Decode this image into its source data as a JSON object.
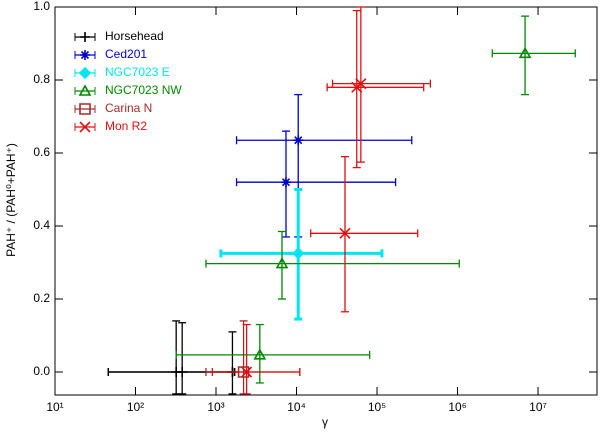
{
  "chart_data": {
    "type": "scatter",
    "xlabel": "γ",
    "ylabel": "PAH⁺ / (PAH⁰+PAH⁺)",
    "xlog": true,
    "xlim": [
      10,
      54000000
    ],
    "ylim": [
      -0.063,
      1.0
    ],
    "xticks": [
      {
        "value": 10,
        "label": "10¹"
      },
      {
        "value": 100,
        "label": "10²"
      },
      {
        "value": 1000,
        "label": "10³"
      },
      {
        "value": 10000,
        "label": "10⁴"
      },
      {
        "value": 100000,
        "label": "10⁵"
      },
      {
        "value": 1000000,
        "label": "10⁶"
      },
      {
        "value": 10000000,
        "label": "10⁷"
      }
    ],
    "yticks": [
      {
        "value": 0,
        "label": "0.0"
      },
      {
        "value": 0.2,
        "label": "0.2"
      },
      {
        "value": 0.4,
        "label": "0.4"
      },
      {
        "value": 0.6,
        "label": "0.6"
      },
      {
        "value": 0.8,
        "label": "0.8"
      },
      {
        "value": 1,
        "label": "1.0"
      }
    ],
    "legend": "upper left",
    "series": [
      {
        "name": "Horsehead",
        "color": "#000000",
        "marker": "plus",
        "points": [
          {
            "x": 320,
            "y": 0,
            "x_low": 46,
            "x_high": 1700,
            "y_low": -0.06,
            "y_high": 0.14
          },
          {
            "x": 380,
            "y": 0,
            "x_low": 46,
            "x_high": 1700,
            "y_low": -0.06,
            "y_high": 0.135
          },
          {
            "x": 1600,
            "y": 0,
            "x_low": 46,
            "x_high": 1700,
            "y_low": -0.06,
            "y_high": 0.11
          }
        ]
      },
      {
        "name": "Ced201",
        "color": "#0000cc",
        "marker": "asterisk",
        "points": [
          {
            "x": 10500,
            "y": 0.635,
            "x_low": 1800,
            "x_high": 270000,
            "y_low": 0.37,
            "y_high": 0.76
          },
          {
            "x": 7400,
            "y": 0.52,
            "x_low": 1800,
            "x_high": 170000,
            "y_low": 0.37,
            "y_high": 0.66
          }
        ]
      },
      {
        "name": "NGC7023 E",
        "color": "#00e5ee",
        "marker": "diamond",
        "points": [
          {
            "x": 10500,
            "y": 0.325,
            "x_low": 1150,
            "x_high": 115000,
            "y_low": 0.145,
            "y_high": 0.5
          }
        ]
      },
      {
        "name": "NGC7023 NW",
        "color": "#008800",
        "marker": "triangle",
        "points": [
          {
            "x": 6900000,
            "y": 0.873,
            "x_low": 2700000,
            "x_high": 29000000,
            "y_low": 0.76,
            "y_high": 0.975
          },
          {
            "x": 6600,
            "y": 0.297,
            "x_low": 750,
            "x_high": 1050000,
            "y_low": 0.2,
            "y_high": 0.385
          },
          {
            "x": 3500,
            "y": 0.047,
            "x_low": 320,
            "x_high": 81000,
            "y_low": -0.03,
            "y_high": 0.13
          }
        ]
      },
      {
        "name": "Carina N",
        "color": "#a52a2a",
        "marker": "square",
        "points": [
          {
            "x": 2200,
            "y": 0,
            "x_low": 750,
            "x_high": 11000,
            "y_low": -0.06,
            "y_high": 0.14
          }
        ]
      },
      {
        "name": "Mon R2",
        "color": "#dd1111",
        "marker": "cross",
        "points": [
          {
            "x": 63000,
            "y": 0.79,
            "x_low": 28000,
            "x_high": 460000,
            "y_low": 0.575,
            "y_high": 1.0
          },
          {
            "x": 56000,
            "y": 0.78,
            "x_low": 24000,
            "x_high": 380000,
            "y_low": 0.56,
            "y_high": 0.99
          },
          {
            "x": 40000,
            "y": 0.38,
            "x_low": 15000,
            "x_high": 320000,
            "y_low": 0.165,
            "y_high": 0.59
          },
          {
            "x": 2400,
            "y": 0,
            "x_low": 900,
            "x_high": 11000,
            "y_low": -0.06,
            "y_high": 0.13
          }
        ]
      }
    ]
  }
}
